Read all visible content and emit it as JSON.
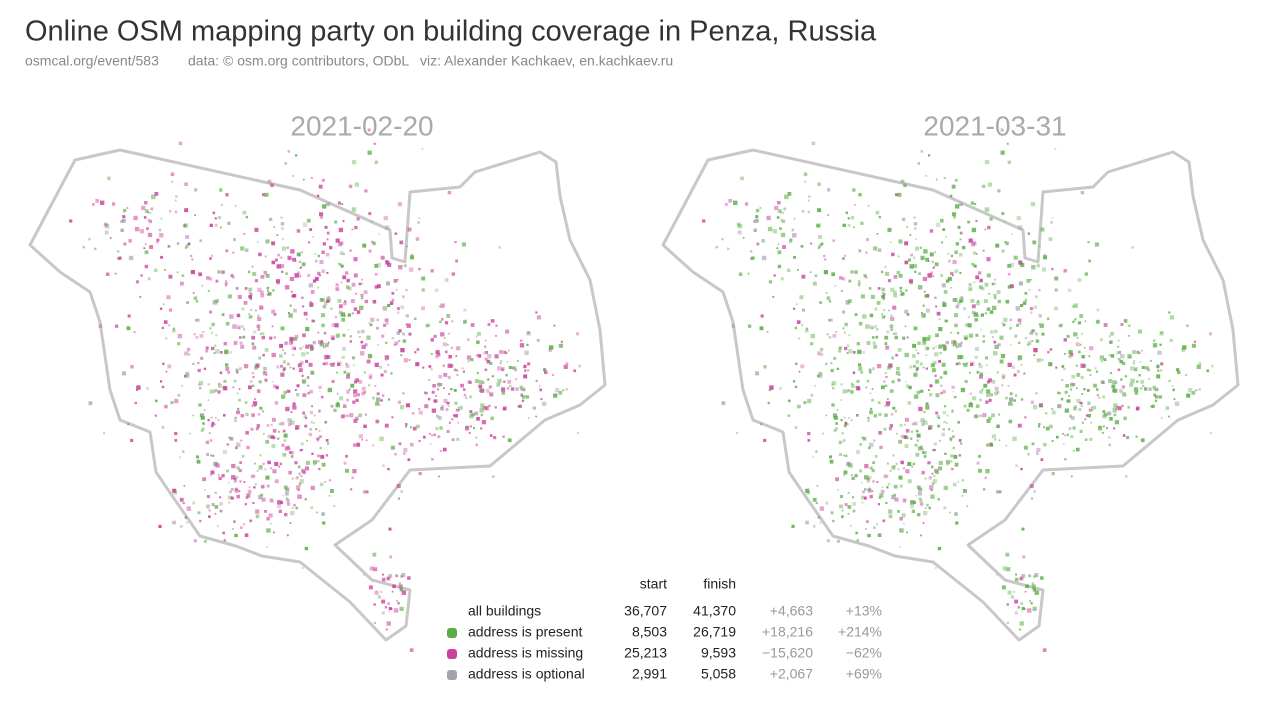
{
  "header": {
    "title": "Online OSM mapping party on building coverage in Penza, Russia",
    "subtitle": [
      "osmcal.org/event/583",
      "data: © osm.org contributors, ODbL",
      "viz: Alexander Kachkaev, en.kachkaev.ru"
    ]
  },
  "maps": [
    {
      "label": "2021-02-20"
    },
    {
      "label": "2021-03-31"
    }
  ],
  "legend": {
    "columns": [
      "start",
      "finish"
    ],
    "rows": [
      {
        "label": "all buildings",
        "start": "36,707",
        "finish": "41,370",
        "change": "+4,663",
        "change_pct": "+13%"
      },
      {
        "label": "address is present",
        "color": "#5aad46",
        "start": "8,503",
        "finish": "26,719",
        "change": "+18,216",
        "change_pct": "+214%"
      },
      {
        "label": "address is missing",
        "color": "#c8419b",
        "start": "25,213",
        "finish": "9,593",
        "change": "−15,620",
        "change_pct": "−62%"
      },
      {
        "label": "address is optional",
        "color": "#a3a3ab",
        "start": "2,991",
        "finish": "5,058",
        "change": "+2,067",
        "change_pct": "+69%"
      }
    ]
  }
}
